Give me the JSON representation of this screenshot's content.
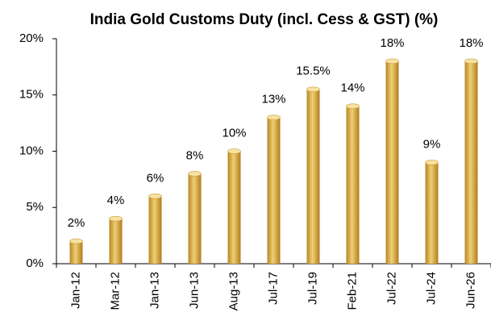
{
  "chart_data": {
    "type": "bar",
    "title": "India Gold Customs Duty (incl. Cess & GST) (%)",
    "categories": [
      "Jan-12",
      "Mar-12",
      "Jan-13",
      "Jun-13",
      "Aug-13",
      "Jul-17",
      "Jul-19",
      "Feb-21",
      "Jul-22",
      "Jul-24",
      "Jun-26"
    ],
    "values": [
      2,
      4,
      6,
      8,
      10,
      13,
      15.5,
      14,
      18,
      9,
      18
    ],
    "value_labels": [
      "2%",
      "4%",
      "6%",
      "8%",
      "10%",
      "13%",
      "15.5%",
      "14%",
      "18%",
      "9%",
      "18%"
    ],
    "color": "#d9aa3f",
    "ylim": [
      0,
      20
    ],
    "yticks": [
      {
        "value": 0,
        "label": "0%"
      },
      {
        "value": 5,
        "label": "5%"
      },
      {
        "value": 10,
        "label": "10%"
      },
      {
        "value": 15,
        "label": "15%"
      },
      {
        "value": 20,
        "label": "20%"
      }
    ],
    "grid": false
  }
}
